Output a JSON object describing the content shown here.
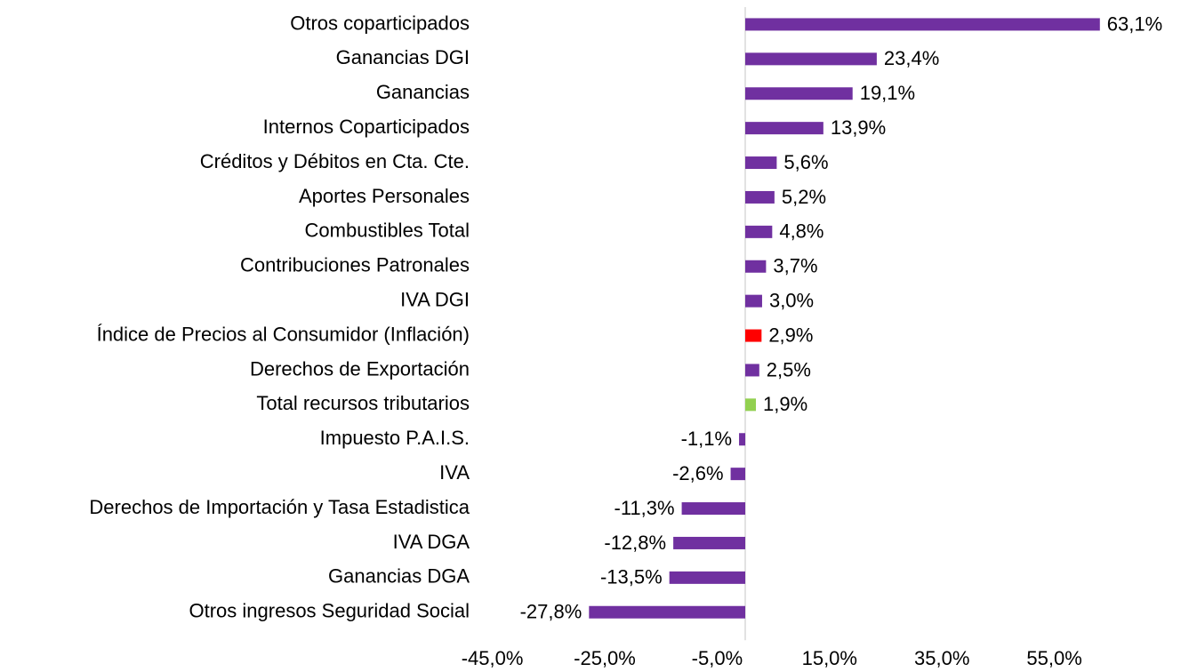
{
  "chart_data": {
    "type": "barh",
    "categories": [
      "Otros coparticipados",
      "Ganancias DGI",
      "Ganancias",
      "Internos Coparticipados",
      "Créditos y Débitos en Cta. Cte.",
      "Aportes Personales",
      "Combustibles Total",
      "Contribuciones Patronales",
      "IVA DGI",
      "Índice de Precios al Consumidor (Inflación)",
      "Derechos de Exportación",
      "Total recursos tributarios",
      "Impuesto P.A.I.S.",
      "IVA",
      "Derechos de Importación y Tasa Estadistica",
      "IVA DGA ",
      "Ganancias DGA ",
      "Otros ingresos Seguridad Social"
    ],
    "values": [
      63.1,
      23.4,
      19.1,
      13.9,
      5.6,
      5.2,
      4.8,
      3.7,
      3.0,
      2.9,
      2.5,
      1.9,
      -1.1,
      -2.6,
      -11.3,
      -12.8,
      -13.5,
      -27.8
    ],
    "value_labels": [
      "63,1%",
      "23,4%",
      "19,1%",
      "13,9%",
      "5,6%",
      "5,2%",
      "4,8%",
      "3,7%",
      "3,0%",
      "2,9%",
      "2,5%",
      "1,9%",
      "-1,1%",
      "-2,6%",
      "-11,3%",
      "-12,8%",
      "-13,5%",
      "-27,8%"
    ],
    "colors": [
      "#7030a0",
      "#7030a0",
      "#7030a0",
      "#7030a0",
      "#7030a0",
      "#7030a0",
      "#7030a0",
      "#7030a0",
      "#7030a0",
      "#ff0000",
      "#7030a0",
      "#92d050",
      "#7030a0",
      "#7030a0",
      "#7030a0",
      "#7030a0",
      "#7030a0",
      "#7030a0"
    ],
    "xlim": [
      -45,
      65
    ],
    "xticks": [
      {
        "value": -45,
        "label": "-45,0%"
      },
      {
        "value": -25,
        "label": "-25,0%"
      },
      {
        "value": -5,
        "label": "-5,0%"
      },
      {
        "value": 15,
        "label": "15,0%"
      },
      {
        "value": 35,
        "label": "35,0%"
      },
      {
        "value": 55,
        "label": "55,0%"
      }
    ],
    "grid": false
  }
}
